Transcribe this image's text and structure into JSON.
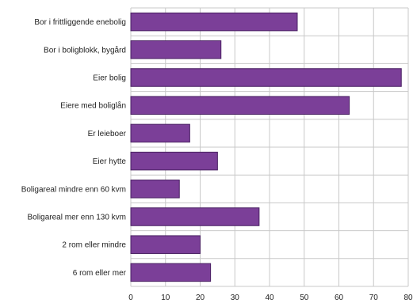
{
  "chart_data": {
    "type": "bar",
    "orientation": "horizontal",
    "categories": [
      "Bor i frittliggende enebolig",
      "Bor i boligblokk, bygård",
      "Eier bolig",
      "Eiere med boliglån",
      "Er leieboer",
      "Eier hytte",
      "Boligareal mindre enn 60 kvm",
      "Boligareal mer enn 130 kvm",
      "2 rom eller mindre",
      "6 rom eller mer"
    ],
    "values": [
      48,
      26,
      78,
      63,
      17,
      25,
      14,
      37,
      20,
      23
    ],
    "xlim": [
      0,
      80
    ],
    "xticks": [
      "0",
      "10",
      "20",
      "30",
      "40",
      "50",
      "60",
      "70",
      "80"
    ],
    "grid": true,
    "bar_color": "#7b3f98",
    "bar_edge_color": "#4a2163",
    "grid_color": "#c8c8c8"
  }
}
